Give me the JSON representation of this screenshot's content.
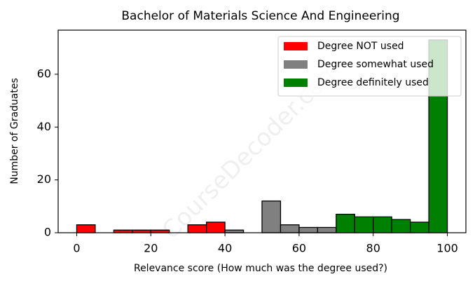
{
  "chart_data": {
    "type": "histogram",
    "title": "Bachelor of Materials Science And Engineering",
    "xlabel": "Relevance score (How much was the degree used?)",
    "ylabel": "Number of Graduates",
    "watermark": "CourseDecoder.com",
    "bins": [
      0,
      5,
      10,
      15,
      20,
      25,
      30,
      35,
      40,
      45,
      50,
      55,
      60,
      65,
      70,
      75,
      80,
      85,
      90,
      95,
      100
    ],
    "series": [
      {
        "name": "Degree NOT used",
        "color": "#ff0000",
        "values": [
          3,
          0,
          1,
          1,
          1,
          0,
          3,
          4,
          0,
          0,
          0,
          0,
          0,
          0,
          0,
          0,
          0,
          0,
          0,
          0
        ]
      },
      {
        "name": "Degree somewhat used",
        "color": "#808080",
        "values": [
          0,
          0,
          0,
          0,
          0,
          0,
          0,
          0,
          1,
          0,
          12,
          3,
          2,
          2,
          0,
          0,
          0,
          0,
          0,
          0
        ]
      },
      {
        "name": "Degree definitely used",
        "color": "#008000",
        "values": [
          0,
          0,
          0,
          0,
          0,
          0,
          0,
          0,
          0,
          0,
          0,
          0,
          0,
          0,
          7,
          6,
          6,
          5,
          4,
          73
        ]
      }
    ],
    "xlim": [
      -5,
      105
    ],
    "ylim": [
      0,
      76.7
    ],
    "xticks": [
      0,
      20,
      40,
      60,
      80,
      100
    ],
    "yticks": [
      0,
      20,
      40,
      60
    ],
    "legend": "upper right"
  }
}
